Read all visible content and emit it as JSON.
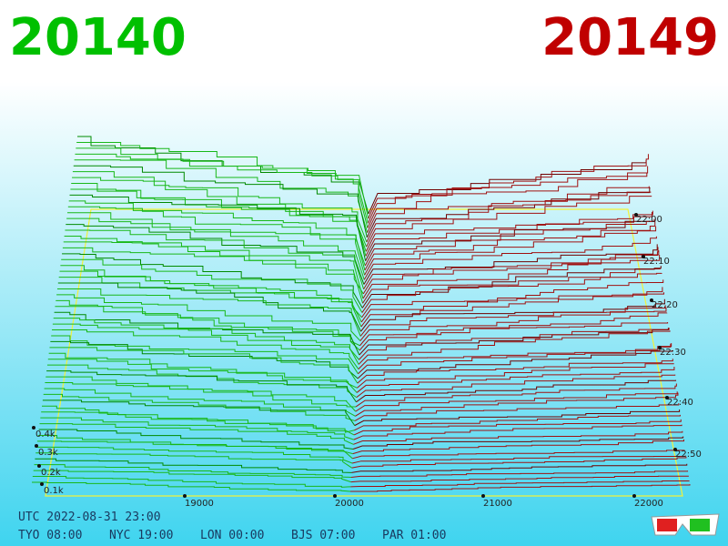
{
  "header": {
    "bid": "20140",
    "ask": "20149"
  },
  "axes": {
    "price_ticks": [
      "19000",
      "20000",
      "21000",
      "22000"
    ],
    "depth_ticks": [
      "0.4k",
      "0.3k",
      "0.2k",
      "0.1k"
    ],
    "time_ticks": [
      "22:00",
      "22:10",
      "22:20",
      "22:30",
      "22:40",
      "22:50"
    ]
  },
  "footer": {
    "utc": "UTC 2022-08-31 23:00",
    "clocks": [
      "TYO 08:00",
      "NYC 19:00",
      "LON 00:00",
      "BJS 07:00",
      "PAR 01:00"
    ]
  }
}
